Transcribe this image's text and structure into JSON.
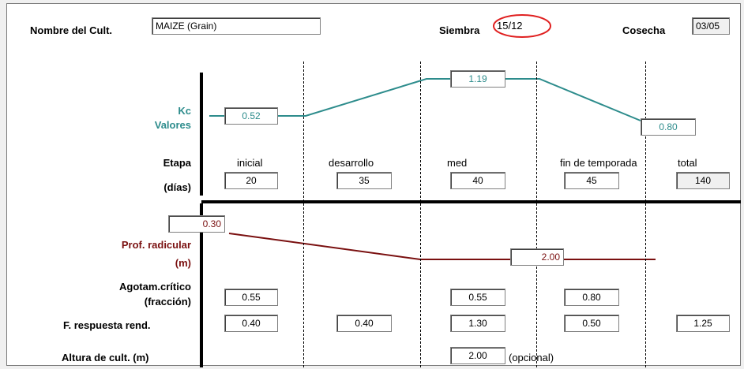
{
  "crop": {
    "name_label": "Nombre del Cult.",
    "name_value": "MAIZE  (Grain)",
    "siembra_label": "Siembra",
    "siembra_value": "15/12",
    "cosecha_label": "Cosecha",
    "cosecha_value": "03/05"
  },
  "kc": {
    "label_line1": "Kc",
    "label_line2": "Valores",
    "ini": "0.52",
    "mid": "1.19",
    "end": "0.80",
    "color": "#2d8c8c"
  },
  "stages": {
    "label_line1": "Etapa",
    "label_line2": "(días)",
    "names": [
      "inicial",
      "desarrollo",
      "med",
      "fin de temporada",
      "total"
    ],
    "days": [
      "20",
      "35",
      "40",
      "45",
      "140"
    ]
  },
  "root": {
    "label_line1": "Prof. radicular",
    "label_line2": "(m)",
    "min": "0.30",
    "max": "2.00",
    "color": "#7a1010"
  },
  "depletion": {
    "label_line1": "Agotam.crítico",
    "label_line2": "(fracción)",
    "ini": "0.55",
    "mid": "0.55",
    "end": "0.80"
  },
  "response": {
    "label": "F. respuesta rend.",
    "ini": "0.40",
    "dev": "0.40",
    "mid": "1.30",
    "end": "0.50",
    "total": "1.25"
  },
  "height": {
    "label": "Altura de cult. (m)",
    "value": "2.00",
    "note": "(opcional)"
  },
  "highlight_color": "#e02020"
}
